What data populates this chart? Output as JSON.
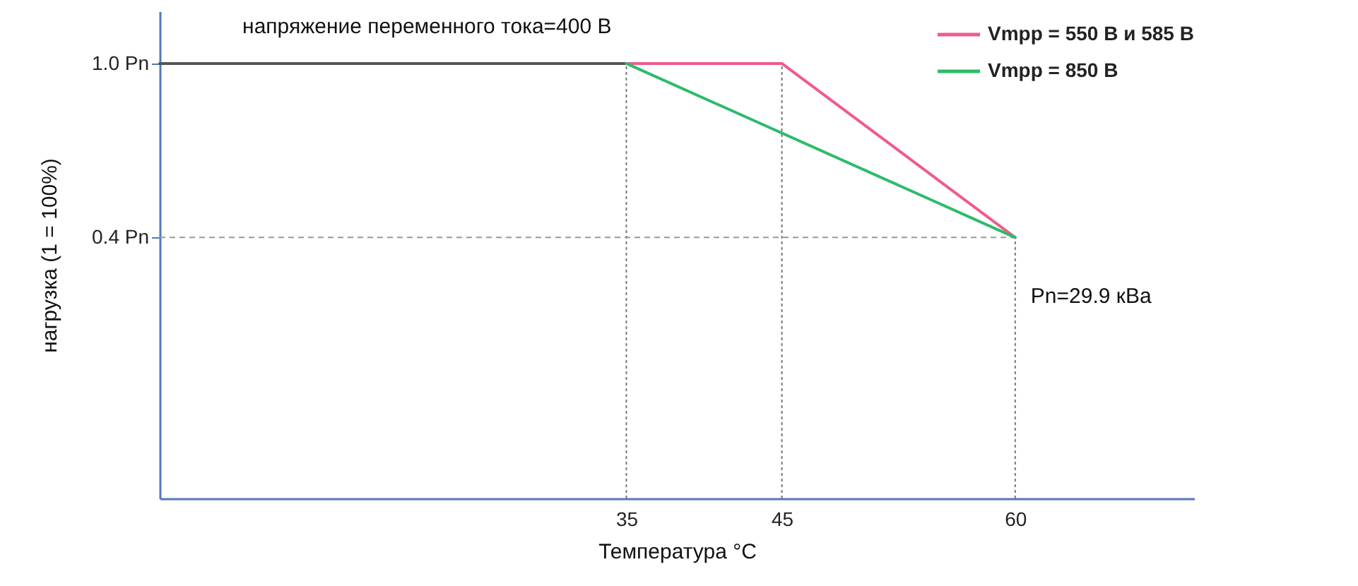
{
  "chart_data": {
    "type": "line",
    "xlabel": "Температура °C",
    "ylabel": "нагрузка (1 = 100%)",
    "xlim": [
      5,
      71.5
    ],
    "xticks": [
      35,
      45,
      60
    ],
    "ylim": [
      -0.5,
      1.18
    ],
    "yticks": [
      {
        "value": 0.4,
        "label": "0.4 Pn"
      },
      {
        "value": 1.0,
        "label": "1.0 Pn"
      }
    ],
    "series": [
      {
        "color": "#555555",
        "x": [
          5,
          35
        ],
        "values": [
          1.0,
          1.0
        ]
      },
      {
        "name": "Vmpp = 550 В и 585 В",
        "color": "#ef5b8a",
        "x": [
          35,
          45,
          60
        ],
        "values": [
          1.0,
          1.0,
          0.4
        ]
      },
      {
        "name": "Vmpp = 850 В",
        "color": "#2dbb6a",
        "x": [
          35,
          60
        ],
        "values": [
          1.0,
          0.4
        ]
      }
    ],
    "ref_lines": [
      {
        "axis": "x",
        "value": 35,
        "line_style": "dotted"
      },
      {
        "axis": "x",
        "value": 45,
        "line_style": "dotted"
      },
      {
        "axis": "x",
        "value": 60,
        "line_style": "dotted"
      },
      {
        "axis": "y",
        "value": 0.4,
        "line_style": "dashed"
      }
    ],
    "annotations": [
      "напряжение переменного тока=400 В",
      "Pn=29.9 кВа"
    ],
    "legend": "top right",
    "grid": false,
    "marker": "none",
    "line_style": "solid"
  }
}
